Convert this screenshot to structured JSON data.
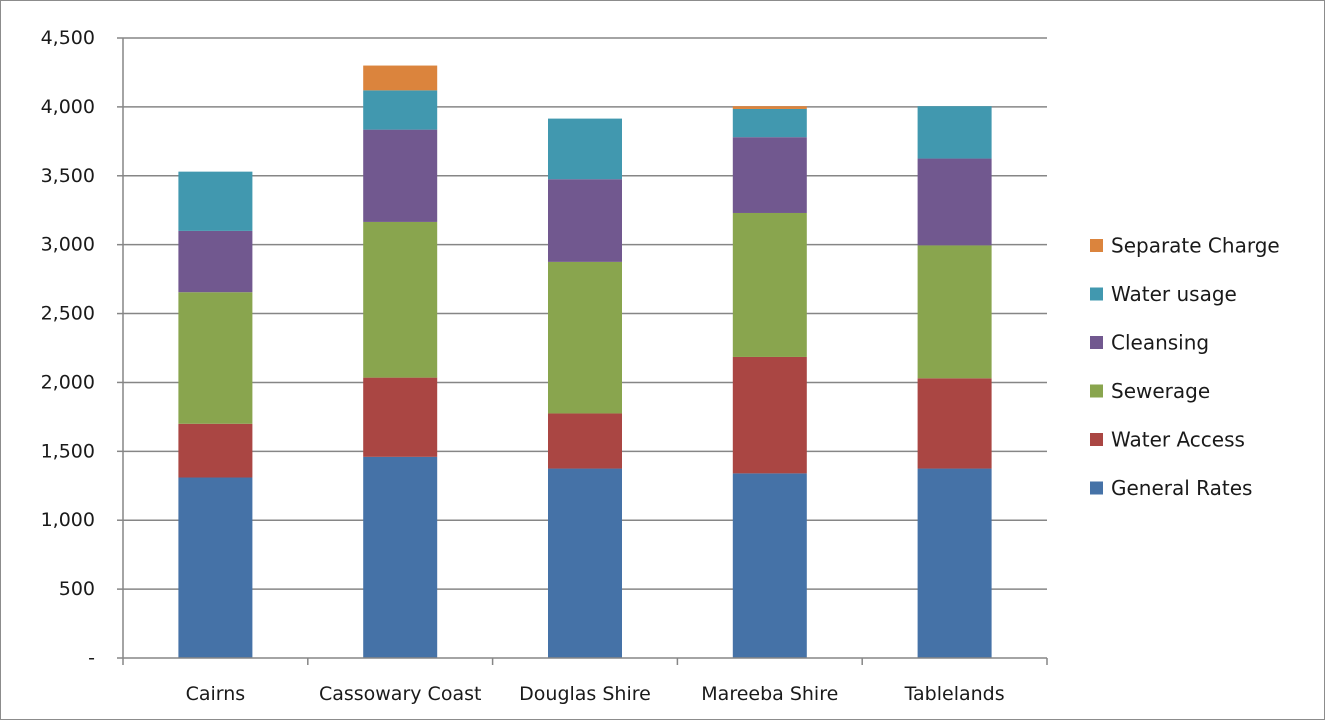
{
  "chart_data": {
    "type": "bar",
    "stacked": true,
    "title": "",
    "xlabel": "",
    "ylabel": "",
    "ylim": [
      0,
      4500
    ],
    "y_ticks": [
      0,
      500,
      1000,
      1500,
      2000,
      2500,
      3000,
      3500,
      4000,
      4500
    ],
    "y_tick_labels": [
      "-",
      "500",
      "1,000",
      "1,500",
      "2,000",
      "2,500",
      "3,000",
      "3,500",
      "4,000",
      "4,500"
    ],
    "grid": true,
    "legend_position": "right",
    "categories": [
      "Cairns",
      "Cassowary Coast",
      "Douglas Shire",
      "Mareeba Shire",
      "Tablelands"
    ],
    "series": [
      {
        "name": "General Rates",
        "color": "#4572A7",
        "values": [
          1310,
          1460,
          1375,
          1340,
          1375
        ]
      },
      {
        "name": "Water Access",
        "color": "#AA4643",
        "values": [
          390,
          575,
          400,
          845,
          655
        ]
      },
      {
        "name": "Sewerage",
        "color": "#89A54E",
        "values": [
          955,
          1130,
          1100,
          1045,
          965
        ]
      },
      {
        "name": "Cleansing",
        "color": "#71588F",
        "values": [
          445,
          670,
          600,
          550,
          630
        ]
      },
      {
        "name": "Water usage",
        "color": "#4198AF",
        "values": [
          430,
          285,
          440,
          205,
          380
        ]
      },
      {
        "name": "Separate Charge",
        "color": "#DB843D",
        "values": [
          0,
          180,
          0,
          20,
          0
        ]
      }
    ]
  }
}
